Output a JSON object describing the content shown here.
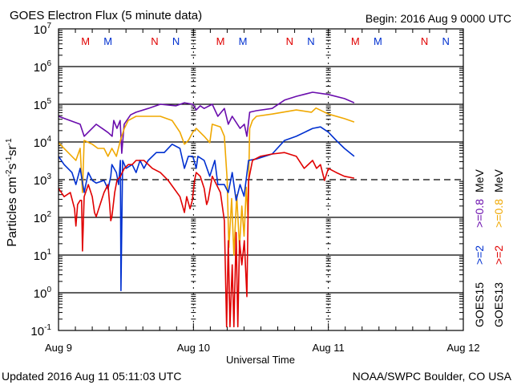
{
  "header": {
    "title": "GOES Electron Flux (5 minute data)",
    "begin": "Begin: 2016 Aug 9 0000 UTC"
  },
  "footer": {
    "updated": "Updated 2016 Aug 11 05:11:03 UTC",
    "credit": "NOAA/SWPC Boulder, CO USA"
  },
  "chart_data": {
    "type": "line",
    "title": "GOES Electron Flux (5 minute data)",
    "xlabel": "Universal Time",
    "ylabel": "Particles cm-2 s-1 sr-1",
    "ylabel_parts": {
      "base": "Particles cm",
      "e1": "-2",
      "s": "s",
      "e2": "-1",
      "sr": "sr",
      "e3": "-1"
    },
    "yscale": "log",
    "ylim_log10": [
      -1,
      7
    ],
    "xlim_hours": [
      0,
      72
    ],
    "x_ticks": [
      {
        "hour": 0,
        "label": "Aug 9"
      },
      {
        "hour": 24,
        "label": "Aug 10"
      },
      {
        "hour": 48,
        "label": "Aug 11"
      },
      {
        "hour": 72,
        "label": "Aug 12"
      }
    ],
    "y_ticks": [
      {
        "exp": 7,
        "base": "10",
        "sup": "7"
      },
      {
        "exp": 6,
        "base": "10",
        "sup": "6"
      },
      {
        "exp": 5,
        "base": "10",
        "sup": "5"
      },
      {
        "exp": 4,
        "base": "10",
        "sup": "4"
      },
      {
        "exp": 3,
        "base": "10",
        "sup": "3"
      },
      {
        "exp": 2,
        "base": "10",
        "sup": "2"
      },
      {
        "exp": 1,
        "base": "10",
        "sup": "1"
      },
      {
        "exp": 0,
        "base": "10",
        "sup": "0"
      },
      {
        "exp": -1,
        "base": "10",
        "sup": "-1"
      }
    ],
    "dashed_threshold_log10": 3,
    "grid": true,
    "markers": [
      {
        "hour": 4.8,
        "letter": "M",
        "color": "#e00000"
      },
      {
        "hour": 8.8,
        "letter": "M",
        "color": "#0030d0"
      },
      {
        "hour": 17.1,
        "letter": "N",
        "color": "#e00000"
      },
      {
        "hour": 20.9,
        "letter": "N",
        "color": "#0030d0"
      },
      {
        "hour": 28.8,
        "letter": "M",
        "color": "#e00000"
      },
      {
        "hour": 32.8,
        "letter": "M",
        "color": "#0030d0"
      },
      {
        "hour": 41.1,
        "letter": "N",
        "color": "#e00000"
      },
      {
        "hour": 44.9,
        "letter": "N",
        "color": "#0030d0"
      },
      {
        "hour": 52.8,
        "letter": "M",
        "color": "#e00000"
      },
      {
        "hour": 56.8,
        "letter": "M",
        "color": "#0030d0"
      },
      {
        "hour": 65.1,
        "letter": "N",
        "color": "#e00000"
      },
      {
        "hour": 68.9,
        "letter": "N",
        "color": "#0030d0"
      }
    ],
    "legend": {
      "placement": "right",
      "columns": [
        {
          "sat": "GOES15",
          "e2": ">=2",
          "e08": ">=0.8",
          "unit": "MeV",
          "c2": "#0030d0",
          "c08": "#6a0dad"
        },
        {
          "sat": "GOES13",
          "e2": ">=2",
          "e08": ">=0.8",
          "unit": "MeV",
          "c2": "#e00000",
          "c08": "#f0a800"
        }
      ]
    },
    "series": [
      {
        "name": "GOES15 >=0.8 MeV",
        "color": "#6a0dad",
        "points": [
          [
            0,
            4.68
          ],
          [
            3.85,
            4.47
          ],
          [
            4.56,
            4.15
          ],
          [
            6.7,
            4.47
          ],
          [
            8.83,
            4.25
          ],
          [
            9.54,
            4.15
          ],
          [
            9.83,
            4.57
          ],
          [
            10.4,
            4.36
          ],
          [
            10.97,
            4.57
          ],
          [
            11.25,
            3.7
          ],
          [
            11.68,
            4.47
          ],
          [
            12.82,
            4.72
          ],
          [
            13.8,
            4.79
          ],
          [
            15.95,
            4.89
          ],
          [
            18.1,
            5.0
          ],
          [
            20.9,
            4.96
          ],
          [
            22.4,
            5.04
          ],
          [
            23.9,
            5.0
          ],
          [
            24.5,
            4.85
          ],
          [
            25.2,
            4.96
          ],
          [
            25.9,
            4.89
          ],
          [
            27.35,
            5.0
          ],
          [
            28.35,
            4.68
          ],
          [
            29.5,
            4.89
          ],
          [
            30.2,
            4.47
          ],
          [
            30.9,
            4.68
          ],
          [
            32.3,
            4.36
          ],
          [
            33.05,
            4.47
          ],
          [
            33.5,
            4.15
          ],
          [
            34.0,
            4.79
          ],
          [
            35.2,
            4.83
          ],
          [
            38.0,
            4.89
          ],
          [
            40.2,
            5.11
          ],
          [
            42.3,
            5.21
          ],
          [
            45.2,
            5.32
          ],
          [
            48.0,
            5.26
          ],
          [
            50.85,
            5.15
          ],
          [
            52.6,
            5.04
          ]
        ]
      },
      {
        "name": "GOES13 >=0.8 MeV",
        "color": "#f0a800",
        "points": [
          [
            0,
            3.98
          ],
          [
            3.1,
            3.51
          ],
          [
            3.85,
            3.83
          ],
          [
            4.27,
            2.66
          ],
          [
            4.56,
            4.04
          ],
          [
            6.0,
            3.94
          ],
          [
            7.0,
            3.83
          ],
          [
            8.1,
            3.83
          ],
          [
            8.8,
            3.62
          ],
          [
            9.5,
            3.83
          ],
          [
            10.3,
            3.62
          ],
          [
            11.0,
            4.04
          ],
          [
            11.7,
            4.36
          ],
          [
            12.4,
            4.57
          ],
          [
            13.8,
            4.68
          ],
          [
            16,
            4.68
          ],
          [
            18.1,
            4.68
          ],
          [
            20.2,
            4.57
          ],
          [
            21.6,
            4.26
          ],
          [
            22.4,
            3.94
          ],
          [
            23.1,
            4.04
          ],
          [
            23.9,
            4.26
          ],
          [
            24.5,
            4.36
          ],
          [
            25.9,
            4.15
          ],
          [
            26.9,
            3.98
          ],
          [
            27.35,
            4.47
          ],
          [
            28.8,
            4.4
          ],
          [
            29.5,
            4.15
          ],
          [
            30.0,
            3.0
          ],
          [
            30.3,
            1.2
          ],
          [
            30.8,
            2.5
          ],
          [
            31.2,
            1.0
          ],
          [
            31.7,
            2.6
          ],
          [
            32.2,
            1.2
          ],
          [
            32.6,
            2.3
          ],
          [
            33.0,
            1.5
          ],
          [
            33.4,
            2.8
          ],
          [
            33.7,
            2.0
          ],
          [
            34.0,
            4.36
          ],
          [
            34.5,
            4.57
          ],
          [
            35.2,
            4.68
          ],
          [
            38,
            4.74
          ],
          [
            42.3,
            4.85
          ],
          [
            45,
            4.79
          ],
          [
            45.8,
            4.9
          ],
          [
            48,
            4.74
          ],
          [
            50.85,
            4.62
          ],
          [
            52.6,
            4.53
          ]
        ]
      },
      {
        "name": "GOES15 >=2 MeV",
        "color": "#0030d0",
        "points": [
          [
            0,
            3.62
          ],
          [
            1,
            3.4
          ],
          [
            2.4,
            3.19
          ],
          [
            3.1,
            2.87
          ],
          [
            3.85,
            3.3
          ],
          [
            4.56,
            2.66
          ],
          [
            5.3,
            3.19
          ],
          [
            6,
            2.98
          ],
          [
            6.7,
            2.91
          ],
          [
            8.1,
            2.98
          ],
          [
            8.8,
            2.75
          ],
          [
            9.3,
            3.09
          ],
          [
            9.5,
            3.4
          ],
          [
            10.3,
            3.19
          ],
          [
            10.7,
            2.87
          ],
          [
            11.0,
            3.51
          ],
          [
            11.1,
            0.06
          ],
          [
            11.4,
            3.51
          ],
          [
            12.0,
            3.3
          ],
          [
            13.1,
            3.4
          ],
          [
            13.8,
            3.19
          ],
          [
            14.5,
            3.51
          ],
          [
            15.2,
            3.3
          ],
          [
            15.95,
            3.51
          ],
          [
            17.4,
            3.72
          ],
          [
            18.8,
            3.72
          ],
          [
            20.2,
            3.94
          ],
          [
            21.6,
            3.83
          ],
          [
            22.4,
            3.3
          ],
          [
            23.1,
            3.62
          ],
          [
            23.9,
            3.62
          ],
          [
            24.5,
            3.3
          ],
          [
            24.8,
            3.62
          ],
          [
            25.9,
            3.51
          ],
          [
            26.9,
            3.09
          ],
          [
            27.8,
            3.51
          ],
          [
            28.35,
            2.87
          ],
          [
            29.5,
            2.87
          ],
          [
            30.2,
            2.66
          ],
          [
            30.9,
            3.19
          ],
          [
            31.6,
            2.45
          ],
          [
            32.3,
            2.87
          ],
          [
            33.0,
            2.56
          ],
          [
            33.8,
            3.51
          ],
          [
            35.2,
            3.55
          ],
          [
            38,
            3.68
          ],
          [
            40.2,
            4.04
          ],
          [
            42.3,
            4.15
          ],
          [
            45.2,
            4.36
          ],
          [
            46.6,
            4.4
          ],
          [
            48,
            4.26
          ],
          [
            49.4,
            4.04
          ],
          [
            50.85,
            3.83
          ],
          [
            52.6,
            3.62
          ]
        ]
      },
      {
        "name": "GOES13 >=2 MeV",
        "color": "#e00000",
        "points": [
          [
            0,
            2.77
          ],
          [
            1,
            2.55
          ],
          [
            2.1,
            2.66
          ],
          [
            2.85,
            2.23
          ],
          [
            3.1,
            1.77
          ],
          [
            3.4,
            2.34
          ],
          [
            3.85,
            2.45
          ],
          [
            4.1,
            2.45
          ],
          [
            4.27,
            1.11
          ],
          [
            4.56,
            2.55
          ],
          [
            5.3,
            2.87
          ],
          [
            6,
            2.55
          ],
          [
            6.4,
            2.13
          ],
          [
            6.7,
            2.02
          ],
          [
            7.4,
            2.34
          ],
          [
            8.1,
            2.66
          ],
          [
            8.8,
            2.87
          ],
          [
            9.1,
            2.34
          ],
          [
            9.3,
            1.91
          ],
          [
            9.5,
            2.02
          ],
          [
            10,
            2.66
          ],
          [
            10.4,
            2.98
          ],
          [
            11,
            3.09
          ],
          [
            11.7,
            3.3
          ],
          [
            12.4,
            3.4
          ],
          [
            13.1,
            3.4
          ],
          [
            13.8,
            3.51
          ],
          [
            15.2,
            3.51
          ],
          [
            16.7,
            3.3
          ],
          [
            18.1,
            3.19
          ],
          [
            19.5,
            2.98
          ],
          [
            21.6,
            2.55
          ],
          [
            22.4,
            2.13
          ],
          [
            22.8,
            2.55
          ],
          [
            23.4,
            2.23
          ],
          [
            23.8,
            2.45
          ],
          [
            24.2,
            2.98
          ],
          [
            24.5,
            3.19
          ],
          [
            25.2,
            3.09
          ],
          [
            25.9,
            2.77
          ],
          [
            26.35,
            2.34
          ],
          [
            26.6,
            2.45
          ],
          [
            27.35,
            3.09
          ],
          [
            28.1,
            2.87
          ],
          [
            28.8,
            2.66
          ],
          [
            29.5,
            1.91
          ],
          [
            29.9,
            -0.9
          ],
          [
            30.2,
            1.38
          ],
          [
            30.5,
            -0.9
          ],
          [
            30.9,
            0.74
          ],
          [
            31.2,
            -0.9
          ],
          [
            31.6,
            1.6
          ],
          [
            31.9,
            -0.9
          ],
          [
            32.2,
            1.38
          ],
          [
            32.6,
            0.74
          ],
          [
            33.05,
            1.38
          ],
          [
            33.5,
            -0.1
          ],
          [
            33.8,
            2.98
          ],
          [
            34.5,
            3.51
          ],
          [
            35.9,
            3.62
          ],
          [
            38,
            3.68
          ],
          [
            40.2,
            3.72
          ],
          [
            42.3,
            3.62
          ],
          [
            43.7,
            3.3
          ],
          [
            45.2,
            3.51
          ],
          [
            45.9,
            3.3
          ],
          [
            46.6,
            3.4
          ],
          [
            47.3,
            2.98
          ],
          [
            48,
            3.3
          ],
          [
            49.4,
            3.19
          ],
          [
            50.85,
            3.09
          ],
          [
            52.6,
            3.04
          ]
        ]
      }
    ]
  }
}
